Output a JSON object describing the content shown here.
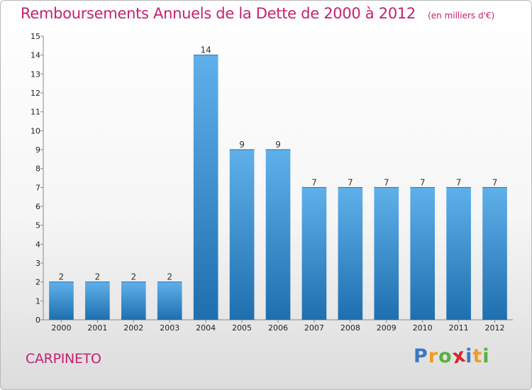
{
  "header": {
    "title": "Remboursements Annuels de la Dette de 2000 à 2012",
    "unit": "(en milliers d'€)"
  },
  "footer": {
    "commune": "CARPINETO",
    "logo_letters": [
      "P",
      "r",
      "o",
      "x",
      "i",
      "t",
      "i"
    ],
    "logo_colors": [
      "#3a78c3",
      "#f39a1f",
      "#57b23c",
      "#d8232a",
      "#3a78c3",
      "#f39a1f",
      "#57b23c"
    ]
  },
  "colors": {
    "title": "#c6206f",
    "bar_light": "#5fb0ea",
    "bar_dark": "#1f6faf"
  },
  "chart_data": {
    "type": "bar",
    "categories": [
      "2000",
      "2001",
      "2002",
      "2003",
      "2004",
      "2005",
      "2006",
      "2007",
      "2008",
      "2009",
      "2010",
      "2011",
      "2012"
    ],
    "values": [
      2,
      2,
      2,
      2,
      14,
      9,
      9,
      7,
      7,
      7,
      7,
      7,
      7
    ],
    "data_labels": [
      "2",
      "2",
      "2",
      "2",
      "14",
      "9",
      "9",
      "7",
      "7",
      "7",
      "7",
      "7",
      "7"
    ],
    "y_ticks": [
      "0",
      "1",
      "2",
      "3",
      "4",
      "5",
      "6",
      "7",
      "8",
      "9",
      "10",
      "11",
      "12",
      "13",
      "14",
      "15"
    ],
    "ylim": [
      0,
      15
    ],
    "grid": false,
    "legend": "none"
  }
}
